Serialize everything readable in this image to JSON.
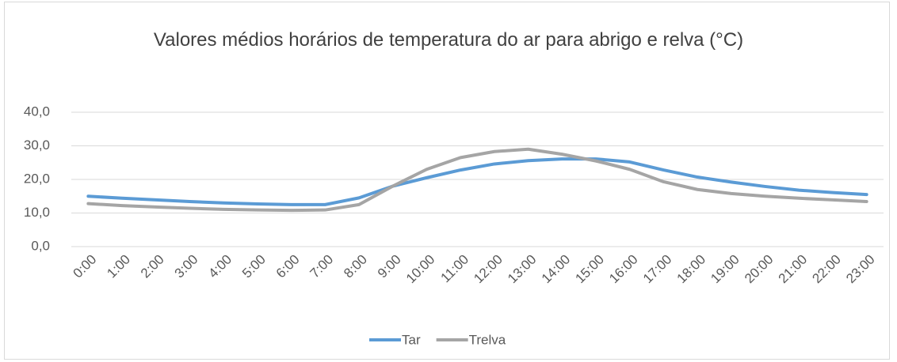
{
  "chart_data": {
    "type": "line",
    "title": "Valores médios horários de temperatura do ar para abrigo e relva (°C)",
    "categories": [
      "0:00",
      "1:00",
      "2:00",
      "3:00",
      "4:00",
      "5:00",
      "6:00",
      "7:00",
      "8:00",
      "9:00",
      "10:00",
      "11:00",
      "12:00",
      "13:00",
      "14:00",
      "15:00",
      "16:00",
      "17:00",
      "18:00",
      "19:00",
      "20:00",
      "21:00",
      "22:00",
      "23:00"
    ],
    "series": [
      {
        "name": "Tar",
        "color": "#5b9bd5",
        "values": [
          15.0,
          14.4,
          13.9,
          13.4,
          13.0,
          12.7,
          12.5,
          12.5,
          14.5,
          18.0,
          20.5,
          22.8,
          24.6,
          25.6,
          26.1,
          26.1,
          25.2,
          22.8,
          20.7,
          19.2,
          17.9,
          16.8,
          16.1,
          15.5
        ]
      },
      {
        "name": "Trelva",
        "color": "#a5a5a5",
        "values": [
          12.8,
          12.2,
          11.8,
          11.4,
          11.1,
          10.9,
          10.8,
          10.9,
          12.5,
          18.0,
          23.0,
          26.5,
          28.3,
          29.0,
          27.5,
          25.5,
          23.0,
          19.3,
          17.0,
          15.8,
          15.0,
          14.4,
          13.9,
          13.4
        ]
      }
    ],
    "ylim": [
      0,
      40
    ],
    "yticks": [
      {
        "value": 0,
        "label": "0,0"
      },
      {
        "value": 10,
        "label": "10,0"
      },
      {
        "value": 20,
        "label": "20,0"
      },
      {
        "value": 30,
        "label": "30,0"
      },
      {
        "value": 40,
        "label": "40,0"
      }
    ],
    "grid": true,
    "legend": "bottom"
  }
}
